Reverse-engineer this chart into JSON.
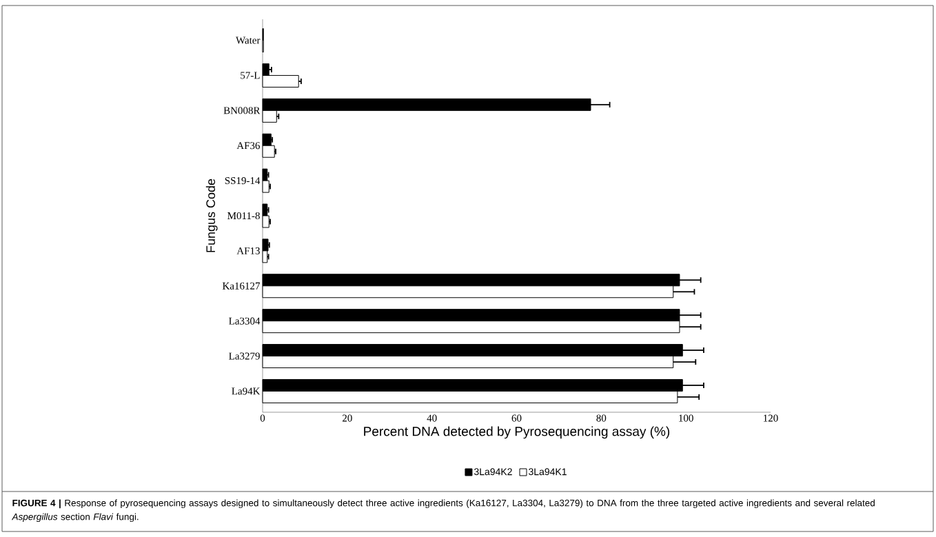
{
  "chart_data": {
    "type": "bar",
    "orientation": "horizontal",
    "xlabel": "Percent DNA detected by Pyrosequencing assay (%)",
    "ylabel": "Fungus Code",
    "categories": [
      "Water",
      "57-L",
      "BN008R",
      "AF36",
      "SS19-14",
      "M011-8",
      "AF13",
      "Ka16127",
      "La3304",
      "La3279",
      "La94K"
    ],
    "series": [
      {
        "name": "3La94K2",
        "color": "#000000",
        "values": [
          0.2,
          1.5,
          77.5,
          2,
          1.1,
          1.1,
          1.3,
          98.5,
          98.5,
          99.2,
          99.2
        ],
        "errors": [
          null,
          0.6,
          4.5,
          0.3,
          0.3,
          0.3,
          0.3,
          5,
          5,
          5,
          5
        ]
      },
      {
        "name": "3La94K1",
        "color": "#ffffff",
        "values": [
          0.2,
          8.5,
          3.3,
          2.8,
          1.5,
          1.5,
          1.1,
          97,
          98.5,
          97,
          98
        ],
        "errors": [
          null,
          0.6,
          0.5,
          0.3,
          0.3,
          0.3,
          0.3,
          5,
          5,
          5.3,
          5.1
        ]
      }
    ],
    "xlim": [
      0,
      120
    ],
    "xticks": [
      0,
      20,
      40,
      60,
      80,
      100,
      120
    ],
    "grid": false,
    "legend": "bottom",
    "annotations": [
      "**FIGURE 4 |** Response of pyrosequencing assays designed to simultaneously detect three active ingredients (Ka16127, La3304, La3279) to DNA from the three targeted active ingredients and several related *Aspergillus* section *Flavi* fungi."
    ]
  }
}
